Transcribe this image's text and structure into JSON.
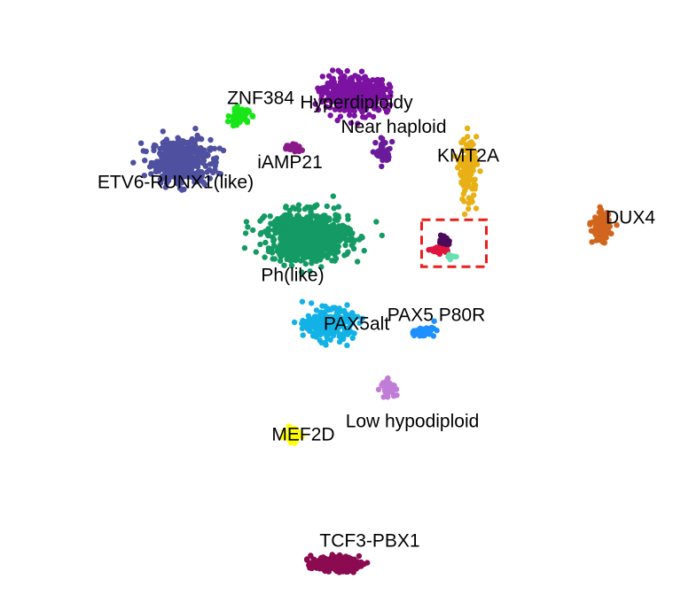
{
  "chart_data": {
    "type": "scatter",
    "title": "",
    "xlabel": "",
    "ylabel": "",
    "grid": false,
    "legend": "none",
    "highlight_box": {
      "color": "#e8201c",
      "style": "dashed"
    },
    "series": [
      {
        "name": "ETV6-RUNX1(like)",
        "color": "#5050a0",
        "center": [
          -60,
          52
        ],
        "spread": [
          10,
          9
        ],
        "n": 420
      },
      {
        "name": "ZNF384",
        "color": "#19e619",
        "center": [
          -38,
          72
        ],
        "spread": [
          3.5,
          3
        ],
        "n": 90
      },
      {
        "name": "Hyperdiploidy",
        "color": "#7b12a1",
        "center": [
          6,
          82
        ],
        "spread": [
          11,
          7
        ],
        "n": 470
      },
      {
        "name": "Near haploid",
        "color": "#6a1b9a",
        "center": [
          16,
          56
        ],
        "spread": [
          2.5,
          5
        ],
        "n": 45
      },
      {
        "name": "iAMP21",
        "color": "#8a1a8a",
        "center": [
          -18,
          58
        ],
        "spread": [
          3,
          2
        ],
        "n": 30
      },
      {
        "name": "KMT2A",
        "color": "#e8b014",
        "center": [
          48,
          48
        ],
        "spread": [
          3,
          13
        ],
        "n": 130
      },
      {
        "name": "DUX4",
        "color": "#d2651e",
        "center": [
          98,
          22
        ],
        "spread": [
          3,
          6
        ],
        "n": 120
      },
      {
        "name": "Ph(like)",
        "color": "#149a64",
        "center": [
          -12,
          18
        ],
        "spread": [
          14,
          10
        ],
        "n": 800
      },
      {
        "name": "PAX5alt",
        "color": "#12b2e6",
        "center": [
          -4,
          -22
        ],
        "spread": [
          8,
          6
        ],
        "n": 260
      },
      {
        "name": "PAX5 P80R",
        "color": "#1e90ff",
        "center": [
          31,
          -25
        ],
        "spread": [
          4,
          2
        ],
        "n": 60
      },
      {
        "name": "Low hypodiploid",
        "color": "#c07cd6",
        "center": [
          18,
          -50
        ],
        "spread": [
          2.5,
          3
        ],
        "n": 55
      },
      {
        "name": "MEF2D",
        "color": "#ffff00",
        "center": [
          -18,
          -72
        ],
        "spread": [
          2.5,
          3
        ],
        "n": 55
      },
      {
        "name": "TCF3-PBX1",
        "color": "#8b0a50",
        "center": [
          -2,
          -130
        ],
        "spread": [
          8,
          3
        ],
        "n": 210
      },
      {
        "name": "",
        "color": "#e0143c",
        "center": [
          37,
          12
        ],
        "spread": [
          3,
          2
        ],
        "n": 25
      },
      {
        "name": "",
        "color": "#4b0a5a",
        "center": [
          39,
          16
        ],
        "spread": [
          2,
          2
        ],
        "n": 18
      },
      {
        "name": "",
        "color": "#66e0b0",
        "center": [
          42,
          9
        ],
        "spread": [
          1.5,
          1
        ],
        "n": 10
      }
    ],
    "labels": [
      {
        "text": "ZNF384",
        "x": -30,
        "y": 80
      },
      {
        "text": "Hyperdiploidy",
        "x": 6,
        "y": 78
      },
      {
        "text": "Near haploid",
        "x": 20,
        "y": 67
      },
      {
        "text": "KMT2A",
        "x": 48,
        "y": 54
      },
      {
        "text": "iAMP21",
        "x": -19,
        "y": 51
      },
      {
        "text": "ETV6-RUNX1(like)",
        "x": -62,
        "y": 42
      },
      {
        "text": "DUX4",
        "x": 109,
        "y": 26
      },
      {
        "text": "Ph(like)",
        "x": -18,
        "y": 0
      },
      {
        "text": "PAX5alt",
        "x": 6,
        "y": -22
      },
      {
        "text": "PAX5 P80R",
        "x": 36,
        "y": -18
      },
      {
        "text": "Low hypodiploid",
        "x": 27,
        "y": -66
      },
      {
        "text": "MEF2D",
        "x": -14,
        "y": -72
      },
      {
        "text": "TCF3-PBX1",
        "x": 11,
        "y": -120
      }
    ]
  }
}
